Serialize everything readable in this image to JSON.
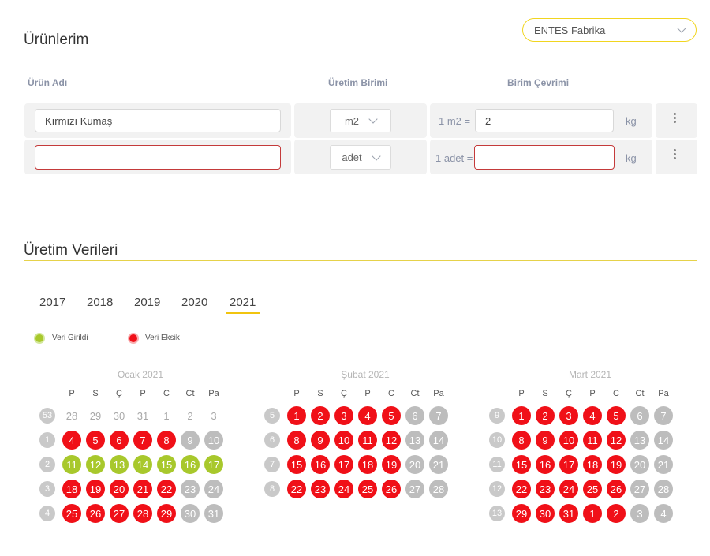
{
  "products": {
    "title": "Ürünlerim",
    "factory_select": "ENTES Fabrika",
    "columns": {
      "name": "Ürün Adı",
      "unit": "Üretim Birimi",
      "conversion": "Birim Çevrimi"
    },
    "rows": [
      {
        "name": "Kırmızı Kumaş",
        "unit": "m2",
        "conv_prefix": "1 m2 =",
        "conv_value": "2",
        "conv_unit": "kg"
      },
      {
        "name": "",
        "unit": "adet",
        "conv_prefix": "1 adet =",
        "conv_value": "",
        "conv_unit": "kg"
      }
    ]
  },
  "production": {
    "title": "Üretim Verileri",
    "years": [
      "2017",
      "2018",
      "2019",
      "2020",
      "2021"
    ],
    "selected_year": "2021",
    "legend": {
      "entered": "Veri Girildi",
      "missing": "Veri Eksik"
    },
    "colors": {
      "entered": "#a8c82c",
      "missing": "#f01018",
      "weekend": "#bdbdbd",
      "accent": "#f1c40f"
    },
    "weekdays": [
      "P",
      "S",
      "Ç",
      "P",
      "C",
      "Ct",
      "Pa"
    ],
    "months": [
      {
        "title": "Ocak 2021",
        "weeks": [
          {
            "wk": "53",
            "days": [
              [
                "28",
                "out"
              ],
              [
                "29",
                "out"
              ],
              [
                "30",
                "out"
              ],
              [
                "31",
                "out"
              ],
              [
                "1",
                "out"
              ],
              [
                "2",
                "out"
              ],
              [
                "3",
                "out"
              ]
            ]
          },
          {
            "wk": "1",
            "days": [
              [
                "4",
                "missing"
              ],
              [
                "5",
                "missing"
              ],
              [
                "6",
                "missing"
              ],
              [
                "7",
                "missing"
              ],
              [
                "8",
                "missing"
              ],
              [
                "9",
                "weekend"
              ],
              [
                "10",
                "weekend"
              ]
            ]
          },
          {
            "wk": "2",
            "days": [
              [
                "11",
                "entered"
              ],
              [
                "12",
                "entered"
              ],
              [
                "13",
                "entered"
              ],
              [
                "14",
                "entered"
              ],
              [
                "15",
                "entered"
              ],
              [
                "16",
                "entered"
              ],
              [
                "17",
                "entered"
              ]
            ]
          },
          {
            "wk": "3",
            "days": [
              [
                "18",
                "missing"
              ],
              [
                "19",
                "missing"
              ],
              [
                "20",
                "missing"
              ],
              [
                "21",
                "missing"
              ],
              [
                "22",
                "missing"
              ],
              [
                "23",
                "weekend"
              ],
              [
                "24",
                "weekend"
              ]
            ]
          },
          {
            "wk": "4",
            "days": [
              [
                "25",
                "missing"
              ],
              [
                "26",
                "missing"
              ],
              [
                "27",
                "missing"
              ],
              [
                "28",
                "missing"
              ],
              [
                "29",
                "missing"
              ],
              [
                "30",
                "weekend"
              ],
              [
                "31",
                "weekend"
              ]
            ]
          }
        ]
      },
      {
        "title": "Şubat 2021",
        "weeks": [
          {
            "wk": "5",
            "days": [
              [
                "1",
                "missing"
              ],
              [
                "2",
                "missing"
              ],
              [
                "3",
                "missing"
              ],
              [
                "4",
                "missing"
              ],
              [
                "5",
                "missing"
              ],
              [
                "6",
                "weekend"
              ],
              [
                "7",
                "weekend"
              ]
            ]
          },
          {
            "wk": "6",
            "days": [
              [
                "8",
                "missing"
              ],
              [
                "9",
                "missing"
              ],
              [
                "10",
                "missing"
              ],
              [
                "11",
                "missing"
              ],
              [
                "12",
                "missing"
              ],
              [
                "13",
                "weekend"
              ],
              [
                "14",
                "weekend"
              ]
            ]
          },
          {
            "wk": "7",
            "days": [
              [
                "15",
                "missing"
              ],
              [
                "16",
                "missing"
              ],
              [
                "17",
                "missing"
              ],
              [
                "18",
                "missing"
              ],
              [
                "19",
                "missing"
              ],
              [
                "20",
                "weekend"
              ],
              [
                "21",
                "weekend"
              ]
            ]
          },
          {
            "wk": "8",
            "days": [
              [
                "22",
                "missing"
              ],
              [
                "23",
                "missing"
              ],
              [
                "24",
                "missing"
              ],
              [
                "25",
                "missing"
              ],
              [
                "26",
                "missing"
              ],
              [
                "27",
                "weekend"
              ],
              [
                "28",
                "weekend"
              ]
            ]
          }
        ]
      },
      {
        "title": "Mart 2021",
        "weeks": [
          {
            "wk": "9",
            "days": [
              [
                "1",
                "missing"
              ],
              [
                "2",
                "missing"
              ],
              [
                "3",
                "missing"
              ],
              [
                "4",
                "missing"
              ],
              [
                "5",
                "missing"
              ],
              [
                "6",
                "weekend"
              ],
              [
                "7",
                "weekend"
              ]
            ]
          },
          {
            "wk": "10",
            "days": [
              [
                "8",
                "missing"
              ],
              [
                "9",
                "missing"
              ],
              [
                "10",
                "missing"
              ],
              [
                "11",
                "missing"
              ],
              [
                "12",
                "missing"
              ],
              [
                "13",
                "weekend"
              ],
              [
                "14",
                "weekend"
              ]
            ]
          },
          {
            "wk": "11",
            "days": [
              [
                "15",
                "missing"
              ],
              [
                "16",
                "missing"
              ],
              [
                "17",
                "missing"
              ],
              [
                "18",
                "missing"
              ],
              [
                "19",
                "missing"
              ],
              [
                "20",
                "weekend"
              ],
              [
                "21",
                "weekend"
              ]
            ]
          },
          {
            "wk": "12",
            "days": [
              [
                "22",
                "missing"
              ],
              [
                "23",
                "missing"
              ],
              [
                "24",
                "missing"
              ],
              [
                "25",
                "missing"
              ],
              [
                "26",
                "missing"
              ],
              [
                "27",
                "weekend"
              ],
              [
                "28",
                "weekend"
              ]
            ]
          },
          {
            "wk": "13",
            "days": [
              [
                "29",
                "missing"
              ],
              [
                "30",
                "missing"
              ],
              [
                "31",
                "missing"
              ],
              [
                "1",
                "missing"
              ],
              [
                "2",
                "missing"
              ],
              [
                "3",
                "weekend"
              ],
              [
                "4",
                "weekend"
              ]
            ]
          }
        ]
      }
    ]
  }
}
